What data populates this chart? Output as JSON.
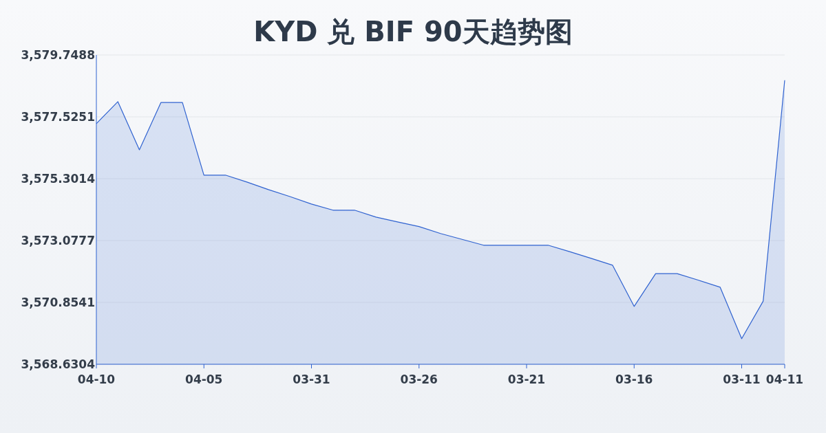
{
  "chart_data": {
    "type": "area",
    "title": "KYD 兑 BIF 90天趋势图",
    "categories": [
      "04-10",
      null,
      null,
      null,
      null,
      "04-05",
      null,
      null,
      null,
      null,
      "03-31",
      null,
      null,
      null,
      null,
      "03-26",
      null,
      null,
      null,
      null,
      "03-21",
      null,
      null,
      null,
      null,
      "03-16",
      null,
      null,
      null,
      null,
      "03-11",
      null,
      "04-11"
    ],
    "values": [
      3577.28,
      3578.07,
      3576.34,
      3578.04,
      3578.04,
      3575.43,
      3575.43,
      3575.18,
      3574.91,
      3574.66,
      3574.39,
      3574.17,
      3574.17,
      3573.92,
      3573.75,
      3573.58,
      3573.33,
      3573.12,
      3572.91,
      3572.91,
      3572.91,
      3572.91,
      3572.68,
      3572.44,
      3572.19,
      3570.71,
      3571.89,
      3571.89,
      3571.65,
      3571.4,
      3569.55,
      3570.9,
      3578.84
    ],
    "color": "#2f62d0",
    "ylim": [
      3568.6304,
      3579.7488
    ],
    "yticks": [
      {
        "value": 3568.6304,
        "label": "3,568.6304"
      },
      {
        "value": 3570.8541,
        "label": "3,570.8541"
      },
      {
        "value": 3573.0777,
        "label": "3,573.0777"
      },
      {
        "value": 3575.3014,
        "label": "3,575.3014"
      },
      {
        "value": 3577.5251,
        "label": "3,577.5251"
      },
      {
        "value": 3579.7488,
        "label": "3,579.7488"
      }
    ],
    "grid": "y"
  }
}
